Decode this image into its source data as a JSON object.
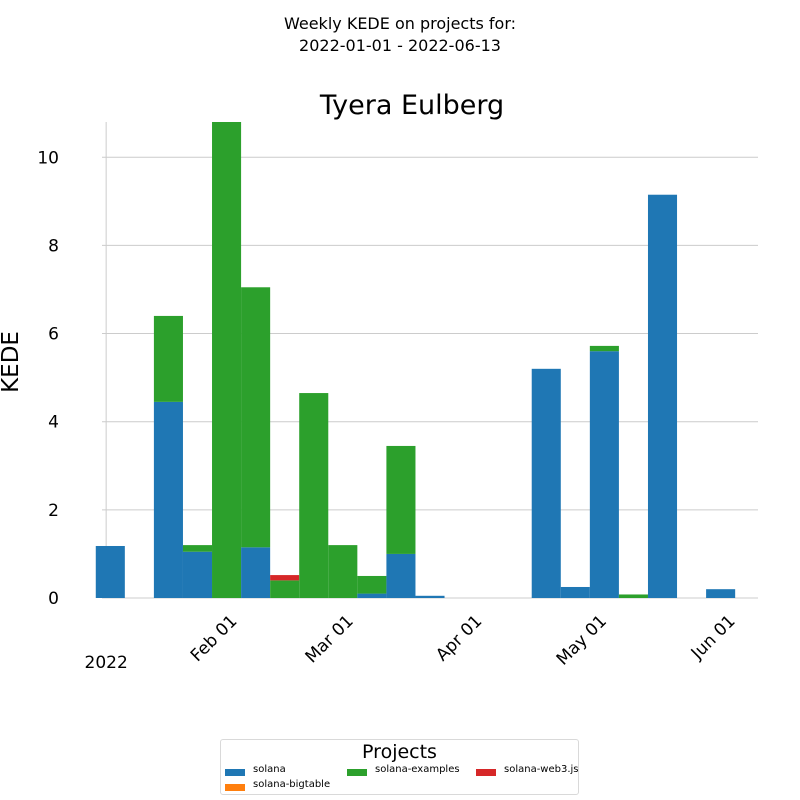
{
  "suptitle": {
    "line1": "Weekly KEDE on projects for:",
    "line2": "2022-01-01 - 2022-06-13"
  },
  "chart_data": {
    "type": "bar",
    "stacked": true,
    "title": "Tyera Eulberg",
    "xlabel": "",
    "ylabel": "KEDE",
    "ylim": [
      0,
      10.8
    ],
    "yticks": [
      0,
      2,
      4,
      6,
      8,
      10
    ],
    "xlim": [
      "2021-12-31",
      "2022-06-07"
    ],
    "xticks": [
      {
        "date": "2022-01-01",
        "label": "2022"
      },
      {
        "date": "2022-02-01",
        "label": "Feb 01"
      },
      {
        "date": "2022-03-01",
        "label": "Mar 01"
      },
      {
        "date": "2022-04-01",
        "label": "Apr 01"
      },
      {
        "date": "2022-05-01",
        "label": "May 01"
      },
      {
        "date": "2022-06-01",
        "label": "Jun 01"
      }
    ],
    "bar_width_days": 7,
    "grid": true,
    "legend_title": "Projects",
    "legend_placement": "bottom-center",
    "categories": [
      "2022-01-02",
      "2022-01-09",
      "2022-01-16",
      "2022-01-23",
      "2022-01-30",
      "2022-02-06",
      "2022-02-13",
      "2022-02-20",
      "2022-02-27",
      "2022-03-06",
      "2022-03-13",
      "2022-03-20",
      "2022-03-27",
      "2022-04-03",
      "2022-04-10",
      "2022-04-17",
      "2022-04-24",
      "2022-05-01",
      "2022-05-08",
      "2022-05-15",
      "2022-05-22",
      "2022-05-29"
    ],
    "series": [
      {
        "name": "solana",
        "color": "#1f77b4",
        "values": [
          1.18,
          0,
          4.45,
          1.05,
          0,
          1.15,
          0,
          0,
          0,
          0.1,
          1.0,
          0.05,
          0,
          0,
          0,
          5.2,
          0.25,
          5.6,
          0,
          9.15,
          0,
          0.2
        ]
      },
      {
        "name": "solana-bigtable",
        "color": "#ff7f0e",
        "values": [
          0,
          0,
          0,
          0,
          0,
          0,
          0,
          0,
          0,
          0,
          0,
          0,
          0,
          0,
          0,
          0,
          0,
          0,
          0,
          0,
          0,
          0
        ]
      },
      {
        "name": "solana-examples",
        "color": "#2ca02c",
        "values": [
          0,
          0,
          1.95,
          0.15,
          10.8,
          5.9,
          0.4,
          4.65,
          1.2,
          0.4,
          2.45,
          0,
          0,
          0,
          0,
          0,
          0,
          0.12,
          0.08,
          0,
          0,
          0
        ]
      },
      {
        "name": "solana-web3.js",
        "color": "#d62728",
        "values": [
          0,
          0,
          0,
          0,
          0,
          0,
          0.12,
          0,
          0,
          0,
          0,
          0,
          0,
          0,
          0,
          0,
          0,
          0,
          0,
          0,
          0,
          0
        ]
      }
    ]
  }
}
